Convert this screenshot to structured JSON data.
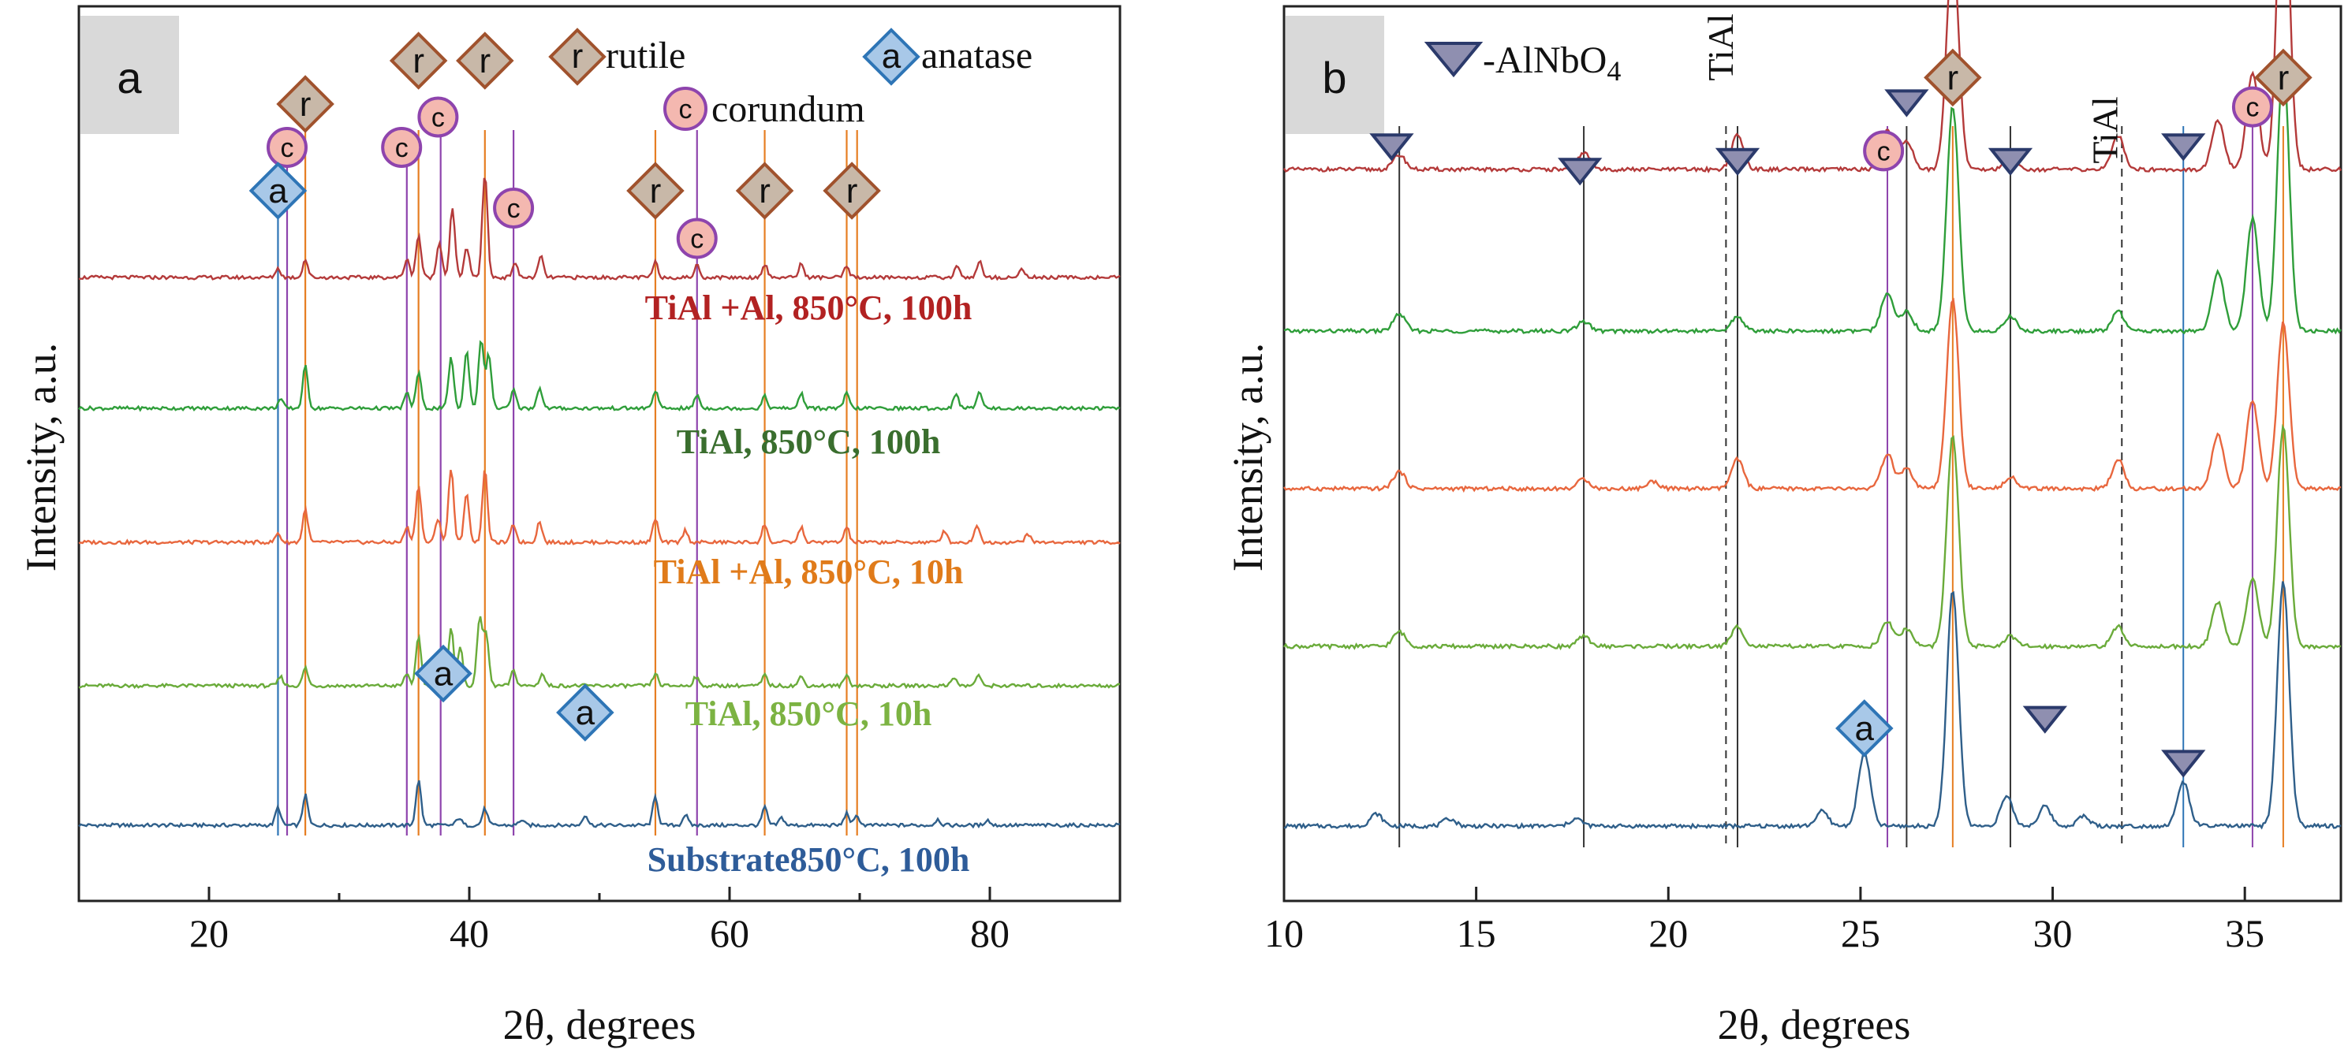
{
  "chart_data": [
    {
      "panel": "a",
      "type": "line",
      "xlabel": "2θ, degrees",
      "ylabel": "Intensity, a.u.",
      "xlim": [
        10,
        90
      ],
      "xticks": [
        "20",
        "40",
        "60",
        "80"
      ],
      "xtick_values": [
        20,
        40,
        60,
        80
      ],
      "grid": false,
      "legend": [
        {
          "marker": "r",
          "label": "rutile",
          "shape": "diamond",
          "color": "#a0522d"
        },
        {
          "marker": "a",
          "label": "anatase",
          "shape": "diamond",
          "color": "#2e75b6"
        },
        {
          "marker": "c",
          "label": "corundum",
          "shape": "circle",
          "color": "#8e44ad"
        }
      ],
      "series": [
        {
          "name": "Substrate850°C, 100h",
          "color": "#2f5f8a",
          "label_color": "#2e5c99",
          "peaks": [
            [
              25.3,
              0.6
            ],
            [
              27.4,
              1.0
            ],
            [
              36.1,
              1.5
            ],
            [
              39.2,
              0.25
            ],
            [
              41.2,
              0.55
            ],
            [
              44.0,
              0.18
            ],
            [
              48.9,
              0.35
            ],
            [
              54.3,
              0.95
            ],
            [
              56.6,
              0.35
            ],
            [
              62.7,
              0.6
            ],
            [
              64.0,
              0.25
            ],
            [
              69.0,
              0.4
            ],
            [
              69.8,
              0.3
            ],
            [
              76.0,
              0.2
            ],
            [
              79.8,
              0.18
            ]
          ]
        },
        {
          "name": "TiAl, 850°C, 10h",
          "color": "#6aab3a",
          "label_color": "#7cb342",
          "peaks": [
            [
              25.5,
              0.3
            ],
            [
              27.4,
              0.6
            ],
            [
              35.2,
              0.4
            ],
            [
              36.1,
              1.6
            ],
            [
              38.6,
              1.9
            ],
            [
              39.3,
              1.3
            ],
            [
              40.8,
              2.3
            ],
            [
              41.3,
              1.7
            ],
            [
              43.4,
              0.5
            ],
            [
              45.6,
              0.4
            ],
            [
              54.3,
              0.4
            ],
            [
              57.4,
              0.3
            ],
            [
              62.7,
              0.35
            ],
            [
              65.5,
              0.3
            ],
            [
              69.0,
              0.35
            ],
            [
              77.2,
              0.3
            ],
            [
              79.1,
              0.35
            ]
          ]
        },
        {
          "name": "TiAl +Al, 850°C, 10h",
          "color": "#e8673e",
          "label_color": "#e07b1a",
          "peaks": [
            [
              25.3,
              0.3
            ],
            [
              27.4,
              1.1
            ],
            [
              35.2,
              0.5
            ],
            [
              36.1,
              1.9
            ],
            [
              37.6,
              0.8
            ],
            [
              38.6,
              2.5
            ],
            [
              39.8,
              1.6
            ],
            [
              41.2,
              2.4
            ],
            [
              43.4,
              0.6
            ],
            [
              45.4,
              0.7
            ],
            [
              54.3,
              0.8
            ],
            [
              56.6,
              0.4
            ],
            [
              62.7,
              0.6
            ],
            [
              65.5,
              0.5
            ],
            [
              69.0,
              0.5
            ],
            [
              76.5,
              0.4
            ],
            [
              79.0,
              0.6
            ],
            [
              82.9,
              0.3
            ]
          ]
        },
        {
          "name": "TiAl, 850°C, 100h",
          "color": "#2f9e3a",
          "label_color": "#3a6e2e",
          "peaks": [
            [
              25.5,
              0.3
            ],
            [
              27.4,
              1.4
            ],
            [
              35.2,
              0.5
            ],
            [
              36.1,
              1.2
            ],
            [
              38.6,
              1.7
            ],
            [
              39.8,
              1.9
            ],
            [
              40.9,
              2.3
            ],
            [
              41.5,
              1.8
            ],
            [
              43.4,
              0.6
            ],
            [
              45.4,
              0.7
            ],
            [
              54.3,
              0.6
            ],
            [
              57.5,
              0.45
            ],
            [
              62.7,
              0.4
            ],
            [
              65.5,
              0.5
            ],
            [
              69.0,
              0.5
            ],
            [
              77.4,
              0.5
            ],
            [
              79.2,
              0.6
            ]
          ]
        },
        {
          "name": "TiAl +Al, 850°C, 100h",
          "color": "#b43a3a",
          "label_color": "#b22222",
          "peaks": [
            [
              25.3,
              0.3
            ],
            [
              27.4,
              0.6
            ],
            [
              35.2,
              0.6
            ],
            [
              36.1,
              1.4
            ],
            [
              37.7,
              1.2
            ],
            [
              38.7,
              2.3
            ],
            [
              39.8,
              1.0
            ],
            [
              41.2,
              3.5
            ],
            [
              43.5,
              0.5
            ],
            [
              45.5,
              0.7
            ],
            [
              54.3,
              0.5
            ],
            [
              57.5,
              0.4
            ],
            [
              62.7,
              0.45
            ],
            [
              65.5,
              0.45
            ],
            [
              69.0,
              0.35
            ],
            [
              77.5,
              0.4
            ],
            [
              79.2,
              0.55
            ],
            [
              82.5,
              0.3
            ]
          ]
        }
      ],
      "reference_lines": [
        {
          "x": 25.3,
          "color": "#2e75b6"
        },
        {
          "x": 26.0,
          "color": "#8e44ad"
        },
        {
          "x": 27.4,
          "color": "#e67e22"
        },
        {
          "x": 35.2,
          "color": "#8e44ad"
        },
        {
          "x": 36.1,
          "color": "#e67e22"
        },
        {
          "x": 37.8,
          "color": "#8e44ad"
        },
        {
          "x": 41.2,
          "color": "#e67e22"
        },
        {
          "x": 43.4,
          "color": "#8e44ad"
        },
        {
          "x": 54.3,
          "color": "#e67e22"
        },
        {
          "x": 57.5,
          "color": "#8e44ad"
        },
        {
          "x": 62.7,
          "color": "#e67e22"
        },
        {
          "x": 69.0,
          "color": "#e67e22"
        },
        {
          "x": 69.8,
          "color": "#e67e22"
        }
      ],
      "phase_markers": [
        {
          "letter": "r",
          "x": 27.4,
          "level": 4,
          "shape": "diamond"
        },
        {
          "letter": "c",
          "x": 26.0,
          "level": 3,
          "shape": "circle"
        },
        {
          "letter": "a",
          "x": 25.3,
          "level": 2,
          "shape": "diamond"
        },
        {
          "letter": "r",
          "x": 36.1,
          "level": 5,
          "shape": "diamond"
        },
        {
          "letter": "c",
          "x": 34.8,
          "level": 3,
          "shape": "circle"
        },
        {
          "letter": "c",
          "x": 37.6,
          "level": 3.7,
          "shape": "circle"
        },
        {
          "letter": "r",
          "x": 41.2,
          "level": 5,
          "shape": "diamond"
        },
        {
          "letter": "c",
          "x": 43.4,
          "level": 1.6,
          "shape": "circle"
        },
        {
          "letter": "r",
          "x": 54.3,
          "level": 2,
          "shape": "diamond"
        },
        {
          "letter": "c",
          "x": 57.5,
          "level": 0.9,
          "shape": "circle"
        },
        {
          "letter": "r",
          "x": 62.7,
          "level": 2,
          "shape": "diamond"
        },
        {
          "letter": "r",
          "x": 69.4,
          "level": 2,
          "shape": "diamond"
        },
        {
          "letter": "a",
          "x": 38.0,
          "level": -3.5,
          "shape": "diamond"
        },
        {
          "letter": "a",
          "x": 48.9,
          "level": -2.6,
          "shape": "diamond"
        }
      ]
    },
    {
      "panel": "b",
      "type": "line",
      "xlabel": "2θ, degrees",
      "ylabel": "Intensity, a.u.",
      "xlim": [
        10,
        37.5
      ],
      "xticks": [
        "10",
        "15",
        "20",
        "25",
        "30",
        "35"
      ],
      "xtick_values": [
        10,
        15,
        20,
        25,
        30,
        35
      ],
      "grid": false,
      "legend_prefix": "-AlNbO",
      "legend_subscript": "4",
      "ref_text": "TiAl",
      "series": [
        {
          "name": "Substrate",
          "color": "#2f5f8a",
          "peaks": [
            [
              12.4,
              0.25
            ],
            [
              14.3,
              0.15
            ],
            [
              17.6,
              0.15
            ],
            [
              24.0,
              0.3
            ],
            [
              25.1,
              1.5
            ],
            [
              27.4,
              4.8
            ],
            [
              28.8,
              0.6
            ],
            [
              29.8,
              0.4
            ],
            [
              30.8,
              0.2
            ],
            [
              33.4,
              0.9
            ],
            [
              36.0,
              5.0
            ]
          ]
        },
        {
          "name": "TiAl 10h",
          "color": "#6aab3a",
          "peaks": [
            [
              13.0,
              0.3
            ],
            [
              17.8,
              0.2
            ],
            [
              21.8,
              0.4
            ],
            [
              25.7,
              0.5
            ],
            [
              26.2,
              0.35
            ],
            [
              27.4,
              4.3
            ],
            [
              28.9,
              0.2
            ],
            [
              31.7,
              0.4
            ],
            [
              34.3,
              0.9
            ],
            [
              35.2,
              1.4
            ],
            [
              36.0,
              4.5
            ]
          ]
        },
        {
          "name": "TiAl +Al 10h",
          "color": "#e8673e",
          "peaks": [
            [
              13.0,
              0.35
            ],
            [
              17.8,
              0.2
            ],
            [
              19.6,
              0.15
            ],
            [
              21.8,
              0.6
            ],
            [
              25.7,
              0.7
            ],
            [
              26.2,
              0.4
            ],
            [
              27.4,
              3.9
            ],
            [
              28.9,
              0.25
            ],
            [
              31.7,
              0.6
            ],
            [
              34.3,
              1.1
            ],
            [
              35.2,
              1.8
            ],
            [
              36.0,
              3.4
            ]
          ]
        },
        {
          "name": "TiAl 100h",
          "color": "#2f9e3a",
          "peaks": [
            [
              13.0,
              0.35
            ],
            [
              17.8,
              0.2
            ],
            [
              21.8,
              0.3
            ],
            [
              25.7,
              0.8
            ],
            [
              26.2,
              0.4
            ],
            [
              27.4,
              4.6
            ],
            [
              28.9,
              0.3
            ],
            [
              31.7,
              0.4
            ],
            [
              34.3,
              1.2
            ],
            [
              35.2,
              2.3
            ],
            [
              36.0,
              5.5
            ]
          ]
        },
        {
          "name": "TiAl +Al 100h",
          "color": "#b43a3a",
          "peaks": [
            [
              13.0,
              0.3
            ],
            [
              17.8,
              0.35
            ],
            [
              21.8,
              0.7
            ],
            [
              25.7,
              0.8
            ],
            [
              26.2,
              0.6
            ],
            [
              27.4,
              4.6
            ],
            [
              28.9,
              0.3
            ],
            [
              31.7,
              0.7
            ],
            [
              34.3,
              1.0
            ],
            [
              35.2,
              2.0
            ],
            [
              36.0,
              6.8
            ]
          ]
        }
      ],
      "reference_lines": [
        {
          "x": 13.0,
          "color": "#333333",
          "dash": false
        },
        {
          "x": 17.8,
          "color": "#333333",
          "dash": false
        },
        {
          "x": 21.8,
          "color": "#333333",
          "dash": false
        },
        {
          "x": 21.5,
          "color": "#333333",
          "dash": true
        },
        {
          "x": 25.7,
          "color": "#8e44ad",
          "dash": false
        },
        {
          "x": 26.2,
          "color": "#333333",
          "dash": false
        },
        {
          "x": 27.4,
          "color": "#e67e22",
          "dash": false
        },
        {
          "x": 28.9,
          "color": "#333333",
          "dash": false
        },
        {
          "x": 31.8,
          "color": "#333333",
          "dash": true
        },
        {
          "x": 33.4,
          "color": "#2e75b6",
          "dash": false
        },
        {
          "x": 35.2,
          "color": "#8e44ad",
          "dash": false
        },
        {
          "x": 36.0,
          "color": "#e67e22",
          "dash": false
        }
      ],
      "phase_markers": [
        {
          "letter": "v",
          "x": 12.8,
          "level": 5.4,
          "shape": "triangle"
        },
        {
          "letter": "v",
          "x": 17.7,
          "level": 4.9,
          "shape": "triangle"
        },
        {
          "letter": "v",
          "x": 21.8,
          "level": 5.1,
          "shape": "triangle"
        },
        {
          "letter": "c",
          "x": 25.6,
          "level": 5.3,
          "shape": "circle"
        },
        {
          "letter": "v",
          "x": 26.2,
          "level": 6.3,
          "shape": "triangle"
        },
        {
          "letter": "r",
          "x": 27.4,
          "level": 6.8,
          "shape": "diamond"
        },
        {
          "letter": "v",
          "x": 28.9,
          "level": 5.1,
          "shape": "triangle"
        },
        {
          "letter": "v",
          "x": 33.4,
          "level": 5.4,
          "shape": "triangle"
        },
        {
          "letter": "c",
          "x": 35.2,
          "level": 6.2,
          "shape": "circle"
        },
        {
          "letter": "r",
          "x": 36.0,
          "level": 6.8,
          "shape": "diamond"
        },
        {
          "letter": "a",
          "x": 25.1,
          "level": -2.0,
          "shape": "diamond"
        },
        {
          "letter": "v",
          "x": 29.8,
          "level": -2.2,
          "shape": "triangle"
        },
        {
          "letter": "v",
          "x": 33.4,
          "level": -1.3,
          "shape": "triangle"
        }
      ],
      "ref_text_positions": [
        21.8,
        31.8
      ]
    }
  ]
}
